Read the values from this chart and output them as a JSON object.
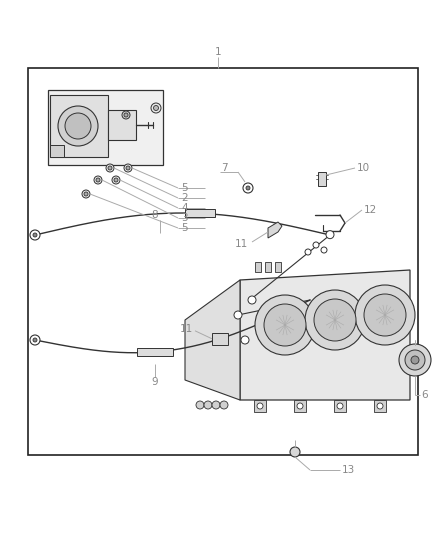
{
  "bg_color": "#ffffff",
  "label_color": "#888888",
  "label_fontsize": 7.5,
  "leader_color": "#aaaaaa",
  "draw_color": "#333333",
  "fig_width": 4.38,
  "fig_height": 5.33,
  "dpi": 100
}
